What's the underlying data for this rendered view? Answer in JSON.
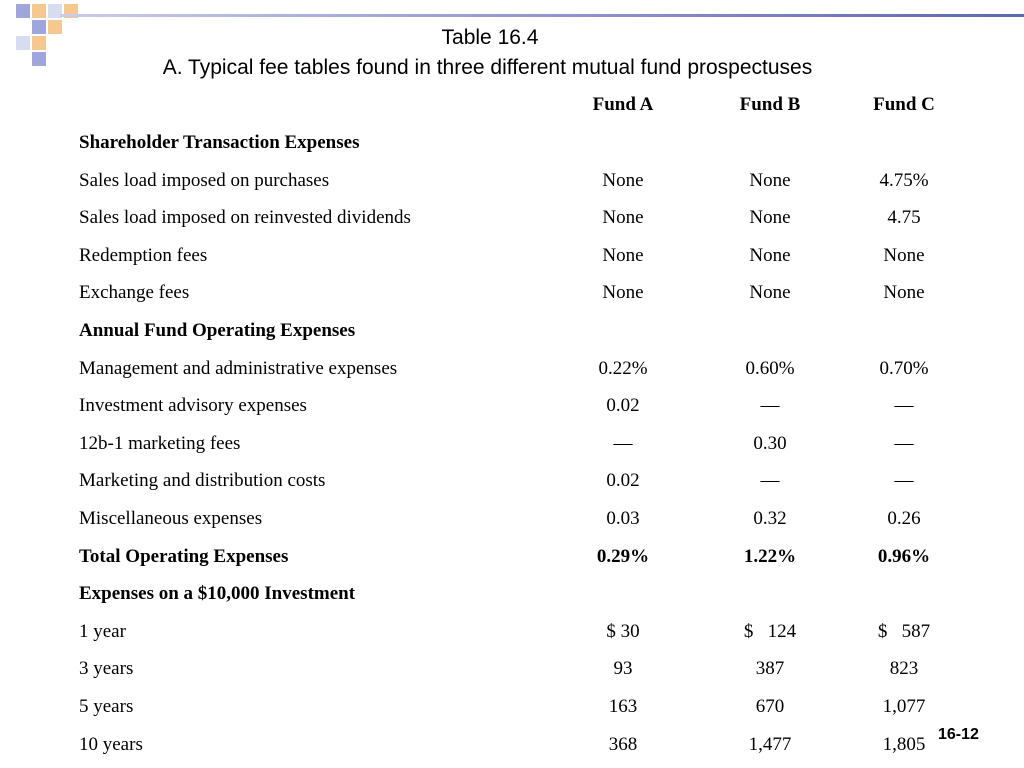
{
  "slide": {
    "title": "Table 16.4",
    "subtitle": "A. Typical fee tables found in three different mutual fund prospectuses",
    "page_number": "16-12"
  },
  "table": {
    "columns": [
      "Fund A",
      "Fund B",
      "Fund C"
    ],
    "rows": [
      {
        "label": "Shareholder Transaction Expenses",
        "bold": true,
        "values": [
          "",
          "",
          ""
        ]
      },
      {
        "label": "Sales load imposed on purchases",
        "bold": false,
        "values": [
          "None",
          "None",
          "4.75%"
        ]
      },
      {
        "label": "Sales load imposed on reinvested dividends",
        "bold": false,
        "values": [
          "None",
          "None",
          "4.75"
        ]
      },
      {
        "label": "Redemption fees",
        "bold": false,
        "values": [
          "None",
          "None",
          "None"
        ]
      },
      {
        "label": "Exchange fees",
        "bold": false,
        "values": [
          "None",
          "None",
          "None"
        ]
      },
      {
        "label": "Annual Fund Operating Expenses",
        "bold": true,
        "values": [
          "",
          "",
          ""
        ]
      },
      {
        "label": "Management and administrative expenses",
        "bold": false,
        "values": [
          "0.22%",
          "0.60%",
          "0.70%"
        ]
      },
      {
        "label": "Investment advisory expenses",
        "bold": false,
        "values": [
          "0.02",
          "—",
          "—"
        ]
      },
      {
        "label": "12b-1 marketing fees",
        "bold": false,
        "values": [
          "—",
          "0.30",
          "—"
        ]
      },
      {
        "label": "Marketing and distribution costs",
        "bold": false,
        "values": [
          "0.02",
          "—",
          "—"
        ]
      },
      {
        "label": "Miscellaneous expenses",
        "bold": false,
        "values": [
          "0.03",
          "0.32",
          "0.26"
        ]
      },
      {
        "label": "Total Operating Expenses",
        "bold": true,
        "values": [
          "0.29%",
          "1.22%",
          "0.96%"
        ]
      },
      {
        "label": "Expenses on a $10,000 Investment",
        "bold": true,
        "values": [
          "",
          "",
          ""
        ]
      },
      {
        "label": "1 year",
        "bold": false,
        "values": [
          "$ 30",
          "$   124",
          "$   587"
        ]
      },
      {
        "label": "3 years",
        "bold": false,
        "values": [
          "93",
          "387",
          "823"
        ]
      },
      {
        "label": "5 years",
        "bold": false,
        "values": [
          "163",
          "670",
          "1,077"
        ]
      },
      {
        "label": "10 years",
        "bold": false,
        "values": [
          "368",
          "1,477",
          "1,805"
        ]
      }
    ]
  },
  "colors": {
    "decor_blue": "#9ea6dc",
    "decor_orange": "#f6c890",
    "decor_light": "#d8dcf1",
    "rule": "#5f66b3"
  }
}
